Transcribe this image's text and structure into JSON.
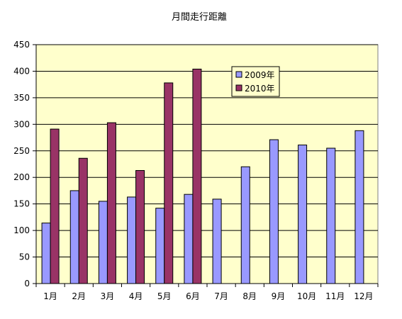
{
  "chart_data": {
    "type": "bar",
    "title": "月間走行距離",
    "xlabel": "",
    "ylabel": "",
    "categories": [
      "1月",
      "2月",
      "3月",
      "4月",
      "5月",
      "6月",
      "7月",
      "8月",
      "9月",
      "10月",
      "11月",
      "12月"
    ],
    "series": [
      {
        "name": "2009年",
        "color": "#9999ff",
        "values": [
          114,
          175,
          155,
          163,
          142,
          168,
          159,
          220,
          271,
          261,
          255,
          288
        ]
      },
      {
        "name": "2010年",
        "color": "#993366",
        "values": [
          291,
          236,
          303,
          213,
          378,
          404,
          null,
          null,
          null,
          null,
          null,
          null
        ]
      }
    ],
    "ylim": [
      0,
      450
    ],
    "yticks": [
      0,
      50,
      100,
      150,
      200,
      250,
      300,
      350,
      400,
      450
    ],
    "grid": true,
    "plot_background": "#ffffcc",
    "legend_position": "top-right"
  }
}
